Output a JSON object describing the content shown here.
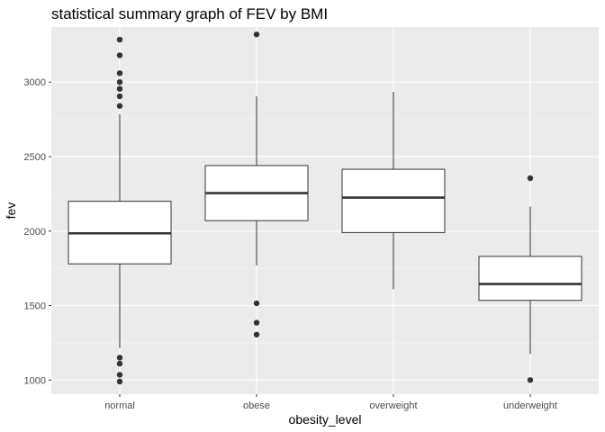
{
  "chart_data": {
    "type": "boxplot",
    "title": "statistical summary graph of FEV by BMI",
    "xlabel": "obesity_level",
    "ylabel": "fev",
    "ylim": [
      905,
      3370
    ],
    "yticks": [
      1000,
      1500,
      2000,
      2500,
      3000
    ],
    "ytick_labels": [
      "1000",
      "1500",
      "2000",
      "2500",
      "3000"
    ],
    "grid": true,
    "categories": [
      "normal",
      "obese",
      "overweight",
      "underweight"
    ],
    "boxes": [
      {
        "category": "normal",
        "whisker_low": 1215,
        "q1": 1780,
        "median": 1985,
        "q3": 2200,
        "whisker_high": 2785,
        "outliers": [
          3285,
          3180,
          3060,
          3000,
          2955,
          2905,
          2840,
          1150,
          1110,
          1035,
          990
        ]
      },
      {
        "category": "obese",
        "whisker_low": 1770,
        "q1": 2070,
        "median": 2255,
        "q3": 2440,
        "whisker_high": 2905,
        "outliers": [
          3320,
          1515,
          1385,
          1305
        ]
      },
      {
        "category": "overweight",
        "whisker_low": 1610,
        "q1": 1990,
        "median": 2225,
        "q3": 2415,
        "whisker_high": 2935,
        "outliers": []
      },
      {
        "category": "underweight",
        "whisker_low": 1175,
        "q1": 1535,
        "median": 1645,
        "q3": 1830,
        "whisker_high": 2165,
        "outliers": [
          2355,
          1000
        ]
      }
    ]
  }
}
